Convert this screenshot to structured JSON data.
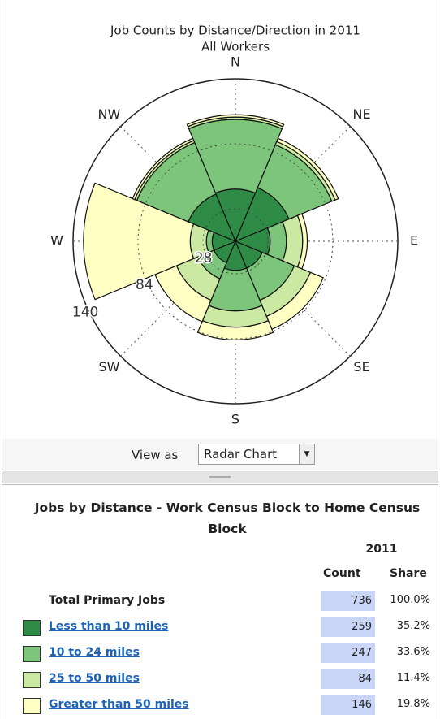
{
  "chart_data": {
    "type": "polar",
    "title": "Job Counts by Distance/Direction in 2011",
    "subtitle": "All Workers",
    "categories": [
      "N",
      "NE",
      "E",
      "SE",
      "S",
      "SW",
      "W",
      "NW"
    ],
    "series": [
      {
        "name": "Less than 10 miles",
        "color": "#2e8b46",
        "values": [
          45,
          50,
          30,
          25,
          25,
          20,
          20,
          44
        ]
      },
      {
        "name": "10 to 24 miles",
        "color": "#7cc57a",
        "values": [
          60,
          40,
          14,
          30,
          35,
          15,
          5,
          48
        ]
      },
      {
        "name": "25 to 50 miles",
        "color": "#cbe9a2",
        "values": [
          2,
          3,
          14,
          15,
          14,
          20,
          14,
          2
        ]
      },
      {
        "name": "Greater than 50 miles",
        "color": "#ffffc4",
        "values": [
          2,
          3,
          4,
          12,
          11,
          20,
          92,
          2
        ]
      }
    ],
    "ylim": [
      0,
      140
    ],
    "yticks": [
      28,
      84,
      140
    ],
    "grid": true
  },
  "view_as": {
    "label": "View as",
    "selected": "Radar Chart"
  },
  "table": {
    "title": "Jobs by Distance - Work Census Block to Home Census Block",
    "year": "2011",
    "columns": [
      "Count",
      "Share"
    ],
    "total": {
      "label": "Total Primary Jobs",
      "count": 736,
      "share": "100.0%"
    },
    "rows": [
      {
        "count": 259,
        "share": "35.2%"
      },
      {
        "count": 247,
        "share": "33.6%"
      },
      {
        "count": 84,
        "share": "11.4%"
      },
      {
        "count": 146,
        "share": "19.8%"
      }
    ]
  }
}
